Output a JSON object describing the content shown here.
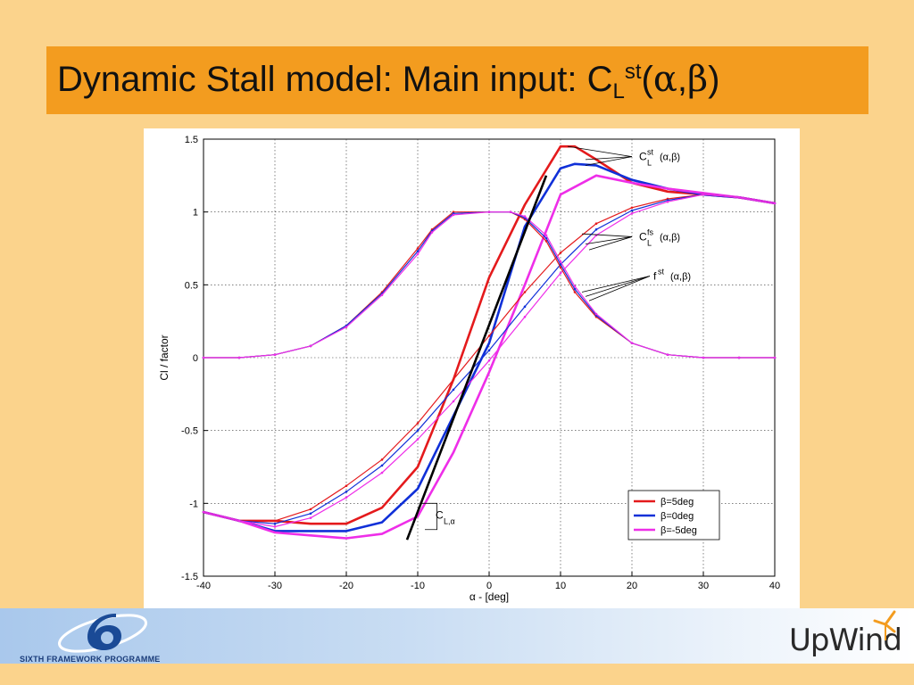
{
  "slide": {
    "title_main": "Dynamic Stall model: Main input: C",
    "title_sub": "L",
    "title_sup": "st",
    "title_args_open": "(",
    "title_alpha": "α",
    "title_comma": ",",
    "title_beta": "β",
    "title_args_close": ")",
    "colors": {
      "background": "#fbd38c",
      "title_bar": "#f39c1f"
    }
  },
  "footer": {
    "programme_label": "SIXTH FRAMEWORK PROGRAMME",
    "logo_label": "UpWind",
    "logo_icon": "wind-turbine-icon"
  },
  "chart_data": {
    "type": "line",
    "xlabel": "α - [deg]",
    "ylabel": "Cl / factor",
    "xlim": [
      -40,
      40
    ],
    "ylim": [
      -1.5,
      1.5
    ],
    "xticks": [
      -40,
      -30,
      -20,
      -10,
      0,
      10,
      20,
      30,
      40
    ],
    "yticks": [
      -1.5,
      -1,
      -0.5,
      0,
      0.5,
      1,
      1.5
    ],
    "grid": true,
    "legend_position": "bottom-right",
    "legend": [
      "β=5deg",
      "β=0deg",
      "β=-5deg"
    ],
    "series": [
      {
        "name": "β=5deg",
        "color": "#e41a1c",
        "curve": "CL_st",
        "x": [
          -40,
          -35,
          -30,
          -25,
          -20,
          -15,
          -10,
          -5,
          0,
          5,
          10,
          12,
          15,
          20,
          25,
          30,
          35,
          40
        ],
        "y": [
          -1.06,
          -1.12,
          -1.12,
          -1.14,
          -1.14,
          -1.03,
          -0.75,
          -0.15,
          0.55,
          1.05,
          1.45,
          1.45,
          1.36,
          1.2,
          1.14,
          1.12,
          1.1,
          1.06
        ]
      },
      {
        "name": "β=0deg",
        "color": "#1030d8",
        "curve": "CL_st",
        "x": [
          -40,
          -35,
          -30,
          -25,
          -20,
          -15,
          -10,
          -5,
          0,
          5,
          10,
          12,
          15,
          20,
          25,
          30,
          35,
          40
        ],
        "y": [
          -1.06,
          -1.12,
          -1.19,
          -1.19,
          -1.19,
          -1.13,
          -0.9,
          -0.4,
          0.1,
          0.9,
          1.3,
          1.33,
          1.32,
          1.22,
          1.16,
          1.12,
          1.1,
          1.06
        ]
      },
      {
        "name": "β=-5deg",
        "color": "#ee2ee8",
        "curve": "CL_st",
        "x": [
          -40,
          -35,
          -30,
          -25,
          -20,
          -15,
          -10,
          -5,
          0,
          5,
          10,
          15,
          20,
          25,
          30,
          35,
          40
        ],
        "y": [
          -1.06,
          -1.12,
          -1.2,
          -1.22,
          -1.24,
          -1.21,
          -1.09,
          -0.65,
          -0.1,
          0.5,
          1.12,
          1.25,
          1.2,
          1.16,
          1.13,
          1.1,
          1.06
        ]
      },
      {
        "name": "",
        "color": "#e41a1c",
        "curve": "CL_fs",
        "x": [
          -40,
          -35,
          -30,
          -25,
          -20,
          -15,
          -10,
          -5,
          0,
          5,
          10,
          15,
          20,
          25,
          30,
          35,
          40
        ],
        "y": [
          -1.06,
          -1.12,
          -1.12,
          -1.04,
          -0.88,
          -0.7,
          -0.45,
          -0.15,
          0.15,
          0.45,
          0.72,
          0.92,
          1.03,
          1.09,
          1.12,
          1.1,
          1.06
        ]
      },
      {
        "name": "",
        "color": "#1030d8",
        "curve": "CL_fs",
        "x": [
          -40,
          -35,
          -30,
          -25,
          -20,
          -15,
          -10,
          -5,
          0,
          5,
          10,
          15,
          20,
          25,
          30,
          35,
          40
        ],
        "y": [
          -1.06,
          -1.12,
          -1.14,
          -1.07,
          -0.92,
          -0.74,
          -0.5,
          -0.22,
          0.05,
          0.35,
          0.64,
          0.88,
          1.01,
          1.08,
          1.12,
          1.1,
          1.06
        ]
      },
      {
        "name": "",
        "color": "#ee2ee8",
        "curve": "CL_fs",
        "x": [
          -40,
          -35,
          -30,
          -25,
          -20,
          -15,
          -10,
          -5,
          0,
          5,
          10,
          15,
          20,
          25,
          30,
          35,
          40
        ],
        "y": [
          -1.06,
          -1.12,
          -1.16,
          -1.1,
          -0.96,
          -0.79,
          -0.56,
          -0.3,
          -0.02,
          0.28,
          0.58,
          0.84,
          0.99,
          1.07,
          1.12,
          1.1,
          1.06
        ]
      },
      {
        "name": "",
        "color": "#e41a1c",
        "curve": "f_st",
        "x": [
          -40,
          -35,
          -30,
          -25,
          -20,
          -15,
          -10,
          -8,
          -5,
          0,
          3,
          5,
          8,
          10,
          12,
          15,
          20,
          25,
          30,
          35,
          40
        ],
        "y": [
          0,
          0.0,
          0.02,
          0.08,
          0.22,
          0.45,
          0.75,
          0.88,
          1.0,
          1.0,
          1.0,
          0.95,
          0.8,
          0.62,
          0.45,
          0.28,
          0.1,
          0.02,
          0,
          0,
          0
        ]
      },
      {
        "name": "",
        "color": "#1030d8",
        "curve": "f_st",
        "x": [
          -40,
          -35,
          -30,
          -25,
          -20,
          -15,
          -10,
          -8,
          -5,
          0,
          3,
          5,
          8,
          10,
          12,
          15,
          20,
          25,
          30,
          35,
          40
        ],
        "y": [
          0,
          0.0,
          0.02,
          0.08,
          0.22,
          0.44,
          0.73,
          0.87,
          0.99,
          1.0,
          1.0,
          0.96,
          0.82,
          0.64,
          0.47,
          0.29,
          0.1,
          0.02,
          0,
          0,
          0
        ]
      },
      {
        "name": "",
        "color": "#ee2ee8",
        "curve": "f_st",
        "x": [
          -40,
          -35,
          -30,
          -25,
          -20,
          -15,
          -10,
          -8,
          -5,
          0,
          3,
          5,
          8,
          10,
          12,
          15,
          20,
          25,
          30,
          35,
          40
        ],
        "y": [
          0,
          0.0,
          0.02,
          0.08,
          0.21,
          0.43,
          0.71,
          0.86,
          0.98,
          1.0,
          1.0,
          0.97,
          0.84,
          0.66,
          0.49,
          0.3,
          0.1,
          0.02,
          0,
          0,
          0
        ]
      },
      {
        "name": "",
        "color": "#000000",
        "curve": "CL_alpha",
        "x": [
          -11.5,
          8
        ],
        "y": [
          -1.25,
          1.25
        ]
      }
    ],
    "annotations": [
      {
        "label": "C",
        "sub": "L",
        "sup": "st",
        "args": "(α,β)",
        "x": 21,
        "y": 1.38
      },
      {
        "label": "C",
        "sub": "L",
        "sup": "fs",
        "args": "(α,β)",
        "x": 21,
        "y": 0.83
      },
      {
        "label": "f",
        "sub": "",
        "sup": "st",
        "args": "(α,β)",
        "x": 23,
        "y": 0.56
      },
      {
        "label": "C",
        "sub": "L,α",
        "sup": "",
        "args": "",
        "x": -7.5,
        "y": -1.08
      }
    ]
  }
}
